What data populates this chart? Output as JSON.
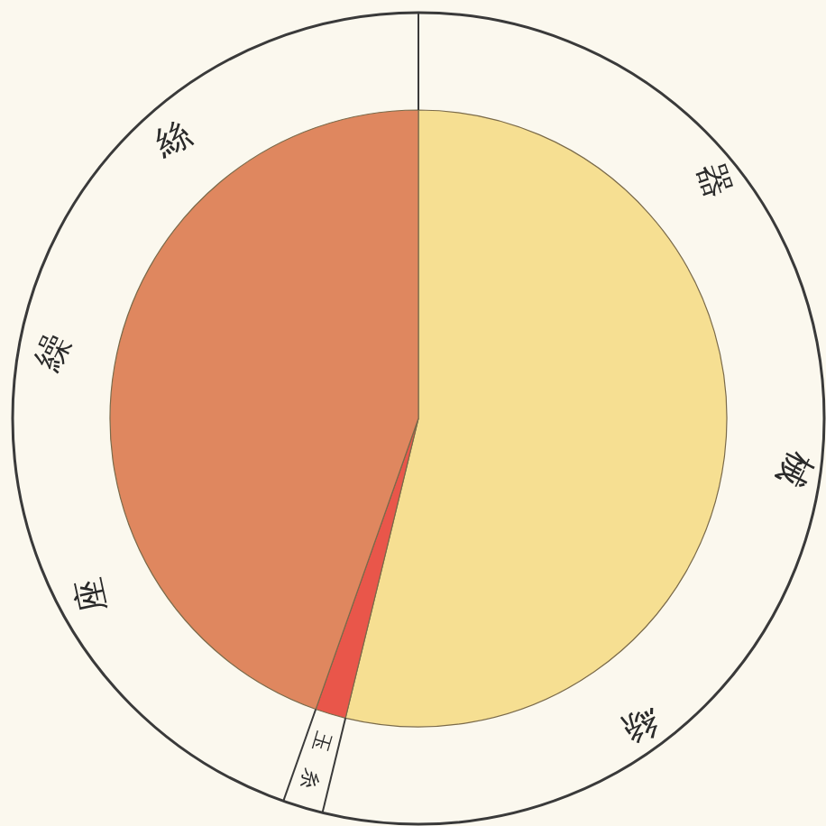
{
  "chart_data": {
    "type": "pie",
    "categories": [
      "器械絲",
      "玉糸",
      "座繰絲"
    ],
    "values": [
      53.8,
      1.6,
      44.6
    ],
    "colors": [
      "#f6df92",
      "#e9564a",
      "#df875f"
    ]
  }
}
